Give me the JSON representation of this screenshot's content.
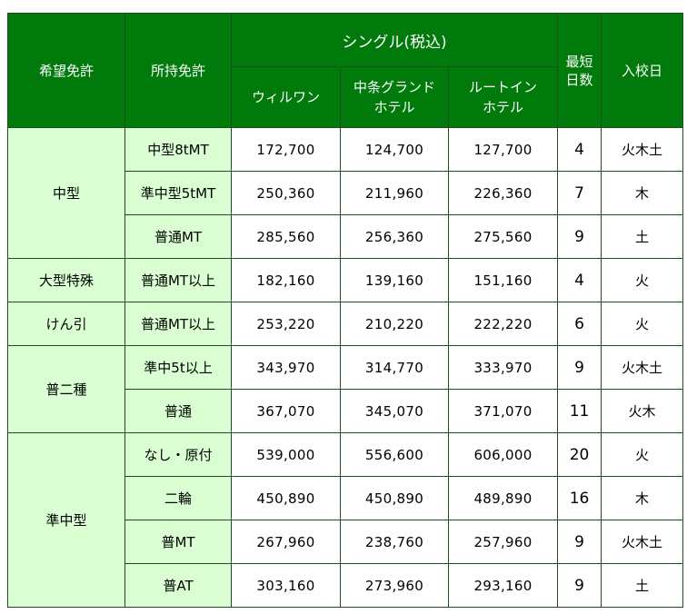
{
  "header": {
    "desired": "希望免許",
    "owned": "所持免許",
    "single": "シングル(税込)",
    "hotels": [
      "ウィルワン",
      "中条グランド\nホテル",
      "ルートイン\nホテル"
    ],
    "shortest_1": "最短",
    "shortest_2": "日数",
    "entry": "入校日"
  },
  "groups": [
    {
      "category": "中型",
      "rows": [
        {
          "license": "中型8tMT",
          "prices": [
            "172,700",
            "124,700",
            "127,700"
          ],
          "days": "4",
          "entry": "火木土"
        },
        {
          "license": "準中型5tMT",
          "prices": [
            "250,360",
            "211,960",
            "226,360"
          ],
          "days": "7",
          "entry": "木"
        },
        {
          "license": "普通MT",
          "prices": [
            "285,560",
            "256,360",
            "275,560"
          ],
          "days": "9",
          "entry": "土"
        }
      ]
    },
    {
      "category": "大型特殊",
      "rows": [
        {
          "license": "普通MT以上",
          "prices": [
            "182,160",
            "139,160",
            "151,160"
          ],
          "days": "4",
          "entry": "火"
        }
      ]
    },
    {
      "category": "けん引",
      "rows": [
        {
          "license": "普通MT以上",
          "prices": [
            "253,220",
            "210,220",
            "222,220"
          ],
          "days": "6",
          "entry": "火"
        }
      ]
    },
    {
      "category": "普二種",
      "rows": [
        {
          "license": "準中5t以上",
          "prices": [
            "343,970",
            "314,770",
            "333,970"
          ],
          "days": "9",
          "entry": "火木土"
        },
        {
          "license": "普通",
          "prices": [
            "367,070",
            "345,070",
            "371,070"
          ],
          "days": "11",
          "entry": "火木"
        }
      ]
    },
    {
      "category": "準中型",
      "rows": [
        {
          "license": "なし・原付",
          "prices": [
            "539,000",
            "556,600",
            "606,000"
          ],
          "days": "20",
          "entry": "火"
        },
        {
          "license": "二輪",
          "prices": [
            "450,890",
            "450,890",
            "489,890"
          ],
          "days": "16",
          "entry": "木"
        },
        {
          "license": "普MT",
          "prices": [
            "267,960",
            "238,760",
            "257,960"
          ],
          "days": "9",
          "entry": "火木土"
        },
        {
          "license": "普AT",
          "prices": [
            "303,160",
            "273,960",
            "293,160"
          ],
          "days": "9",
          "entry": "土"
        }
      ]
    }
  ],
  "colors": {
    "header_bg": "#007a0a",
    "category_bg": "#d9ffd2",
    "border": "#1f4d1f"
  }
}
